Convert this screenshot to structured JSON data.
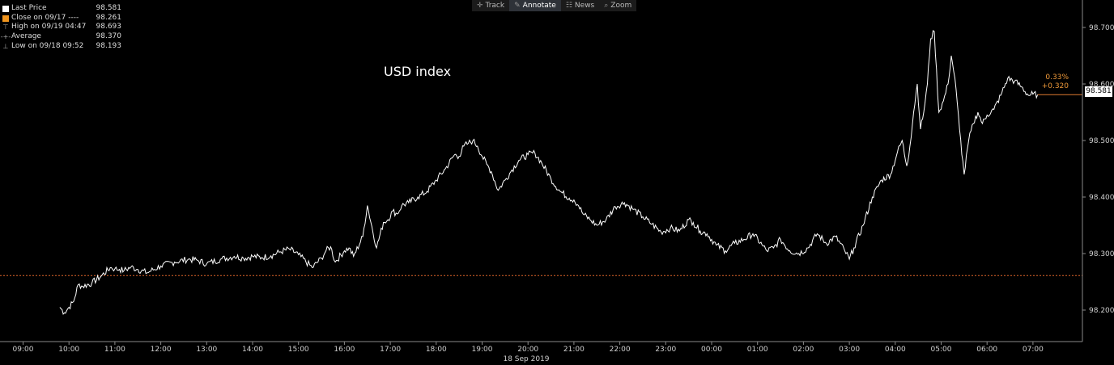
{
  "toolbar": {
    "items": [
      {
        "label": "Track",
        "icon": "crosshair-icon",
        "active": false
      },
      {
        "label": "Annotate",
        "icon": "pencil-icon",
        "active": true
      },
      {
        "label": "News",
        "icon": "news-icon",
        "active": false
      },
      {
        "label": "Zoom",
        "icon": "magnifier-icon",
        "active": false
      }
    ]
  },
  "legend": [
    {
      "label": "Last Price",
      "value": "98.581",
      "color": "#ffffff"
    },
    {
      "label": "Close on 09/17 ----",
      "value": "98.261",
      "color": "#f0951e"
    },
    {
      "label": "High on 09/19 04:47",
      "value": "98.693"
    },
    {
      "label": "Average",
      "value": "98.370"
    },
    {
      "label": "Low on 09/18 09:52",
      "value": "98.193"
    }
  ],
  "annotation": {
    "pct_change": "0.33%",
    "abs_change": "+0.320",
    "last_label": "98.581"
  },
  "colors": {
    "background": "#000000",
    "price_line": "#ffffff",
    "close_line": "#e0652a",
    "change_text": "#f09a3a"
  },
  "chart_data": {
    "type": "line",
    "title": "USD index",
    "date_label": "18 Sep 2019",
    "x_tick_labels": [
      "09:00",
      "10:00",
      "11:00",
      "12:00",
      "13:00",
      "14:00",
      "15:00",
      "16:00",
      "17:00",
      "18:00",
      "19:00",
      "20:00",
      "21:00",
      "22:00",
      "23:00",
      "00:00",
      "01:00",
      "02:00",
      "03:00",
      "04:00",
      "05:00",
      "06:00",
      "07:00"
    ],
    "y_tick_labels": [
      "98.200",
      "98.300",
      "98.400",
      "98.500",
      "98.600",
      "98.700"
    ],
    "ylim": [
      98.16,
      98.72
    ],
    "reference_line": {
      "label": "Close on 09/17",
      "value": 98.261
    },
    "series": [
      {
        "name": "Last Price",
        "x": [
          9.8,
          9.9,
          10.0,
          10.1,
          10.2,
          10.3,
          10.5,
          10.7,
          10.9,
          11.0,
          11.1,
          11.2,
          11.35,
          11.5,
          11.7,
          12.0,
          12.3,
          12.6,
          12.8,
          13.0,
          13.3,
          13.6,
          13.8,
          14.0,
          14.2,
          14.4,
          14.6,
          14.8,
          15.0,
          15.3,
          15.5,
          15.6,
          15.7,
          15.8,
          16.0,
          16.1,
          16.2,
          16.4,
          16.5,
          16.7,
          16.85,
          16.95,
          17.05,
          17.15,
          17.25,
          17.4,
          17.6,
          17.8,
          18.0,
          18.2,
          18.4,
          18.5,
          18.6,
          18.7,
          18.8,
          18.9,
          19.0,
          19.1,
          19.2,
          19.35,
          19.5,
          19.65,
          19.8,
          20.0,
          20.15,
          20.3,
          20.5,
          20.7,
          20.9,
          21.0,
          21.1,
          21.2,
          21.35,
          21.5,
          21.7,
          21.9,
          22.1,
          22.3,
          22.5,
          22.7,
          22.9,
          23.1,
          23.3,
          23.5,
          23.6,
          23.75,
          23.9,
          24.1,
          24.3,
          24.5,
          24.7,
          24.9,
          25.1,
          25.2,
          25.35,
          25.5,
          25.7,
          25.9,
          26.1,
          26.3,
          26.5,
          26.7,
          26.9,
          27.0,
          27.1,
          27.3,
          27.5,
          27.7,
          27.9,
          28.05,
          28.15,
          28.25,
          28.32,
          28.4,
          28.48,
          28.55,
          28.62,
          28.7,
          28.77,
          28.85,
          28.95,
          29.05,
          29.15,
          29.22,
          29.3,
          29.4,
          29.5,
          29.6,
          29.7,
          29.8,
          29.9,
          30.0,
          30.15,
          30.3,
          30.45,
          30.6,
          30.75,
          30.9,
          31.0,
          31.1
        ],
        "values": [
          98.205,
          98.195,
          98.205,
          98.215,
          98.245,
          98.242,
          98.248,
          98.26,
          98.275,
          98.273,
          98.272,
          98.27,
          98.276,
          98.272,
          98.266,
          98.278,
          98.285,
          98.29,
          98.288,
          98.282,
          98.29,
          98.295,
          98.292,
          98.295,
          98.293,
          98.296,
          98.303,
          98.308,
          98.298,
          98.275,
          98.292,
          98.305,
          98.312,
          98.285,
          98.305,
          98.31,
          98.295,
          98.33,
          98.385,
          98.31,
          98.355,
          98.36,
          98.375,
          98.37,
          98.385,
          98.39,
          98.4,
          98.41,
          98.43,
          98.45,
          98.475,
          98.472,
          98.49,
          98.495,
          98.5,
          98.49,
          98.472,
          98.458,
          98.445,
          98.412,
          98.43,
          98.448,
          98.465,
          98.475,
          98.478,
          98.46,
          98.432,
          98.41,
          98.398,
          98.395,
          98.385,
          98.37,
          98.36,
          98.35,
          98.36,
          98.383,
          98.39,
          98.378,
          98.365,
          98.352,
          98.338,
          98.345,
          98.34,
          98.36,
          98.355,
          98.34,
          98.335,
          98.315,
          98.305,
          98.318,
          98.325,
          98.335,
          98.315,
          98.305,
          98.31,
          98.325,
          98.305,
          98.3,
          98.31,
          98.335,
          98.318,
          98.33,
          98.305,
          98.29,
          98.31,
          98.35,
          98.4,
          98.43,
          98.44,
          98.48,
          98.5,
          98.455,
          98.49,
          98.55,
          98.6,
          98.52,
          98.55,
          98.6,
          98.68,
          98.693,
          98.55,
          98.57,
          98.6,
          98.65,
          98.61,
          98.52,
          98.44,
          98.5,
          98.53,
          98.55,
          98.53,
          98.545,
          98.555,
          98.58,
          98.61,
          98.605,
          98.595,
          98.58,
          98.582,
          98.581
        ]
      }
    ]
  }
}
